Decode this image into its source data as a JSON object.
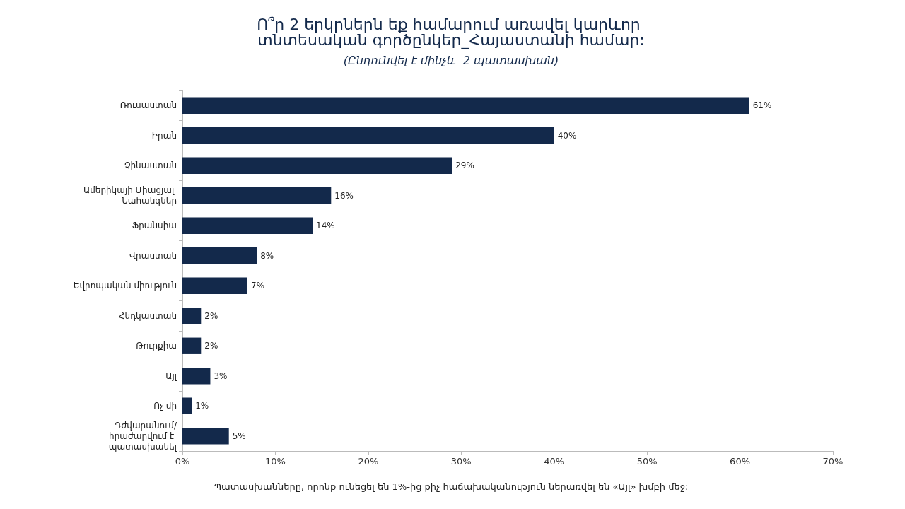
{
  "chart_data": {
    "type": "bar",
    "orientation": "horizontal",
    "title": "Ո՞ր 2 երկրներն եք համարում առավել կարևոր տնտեսական գործընկեր_Հայաստանի համար:",
    "subtitle": "(Ընդունվել է մինչև  2 պատասխան)",
    "categories": [
      "Ռուսաստան",
      "Իրան",
      "Չինաստան",
      "Ամերիկայի Միացյալ Նահանգներ",
      "Ֆրանսիա",
      "Վրաստան",
      "Եվրոպական միություն",
      "Հնդկաստան",
      "Թուրքիա",
      "Այլ",
      "Ոչ մի",
      "Դժվարանում/հրաժարվում է պատասխանել"
    ],
    "values": [
      61,
      40,
      29,
      16,
      14,
      8,
      7,
      2,
      2,
      3,
      1,
      5
    ],
    "value_labels": [
      "61%",
      "40%",
      "29%",
      "16%",
      "14%",
      "8%",
      "7%",
      "2%",
      "2%",
      "3%",
      "1%",
      "5%"
    ],
    "color": "#13294b",
    "xlim": [
      0,
      70
    ],
    "xticks": [
      {
        "value": 0,
        "label": "0%"
      },
      {
        "value": 10,
        "label": "10%"
      },
      {
        "value": 20,
        "label": "20%"
      },
      {
        "value": 30,
        "label": "30%"
      },
      {
        "value": 40,
        "label": "40%"
      },
      {
        "value": 50,
        "label": "50%"
      },
      {
        "value": 60,
        "label": "60%"
      },
      {
        "value": 70,
        "label": "70%"
      }
    ],
    "grid": false,
    "annotations": [
      "Պատասխանները, որոնք ունեցել են 1%-ից քիչ հաճախականություն ներառվել են «Այլ» խմբի մեջ:"
    ]
  }
}
